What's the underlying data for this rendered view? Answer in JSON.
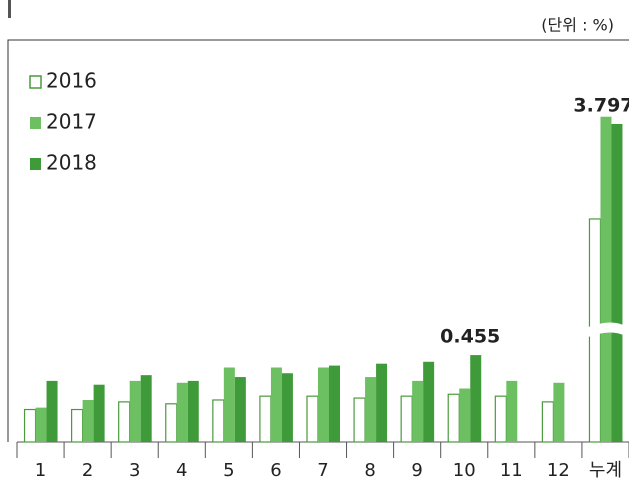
{
  "chart_data": {
    "type": "bar",
    "unit": "(단위 : %)",
    "categories": [
      "1",
      "2",
      "3",
      "4",
      "5",
      "6",
      "7",
      "8",
      "9",
      "10",
      "11",
      "12",
      "누계"
    ],
    "series": [
      {
        "name": "2016",
        "color": "#4a9a3c",
        "values": [
          0.17,
          0.17,
          0.21,
          0.2,
          0.22,
          0.24,
          0.24,
          0.23,
          0.24,
          0.25,
          0.24,
          0.21,
          2.45
        ]
      },
      {
        "name": "2017",
        "color": "#6cc062",
        "values": [
          0.18,
          0.22,
          0.32,
          0.31,
          0.39,
          0.39,
          0.39,
          0.34,
          0.32,
          0.28,
          0.32,
          0.31,
          3.9
        ]
      },
      {
        "name": "2018",
        "color": "#3f9a3a",
        "values": [
          0.32,
          0.3,
          0.35,
          0.32,
          0.34,
          0.36,
          0.4,
          0.41,
          0.42,
          0.455,
          null,
          null,
          3.797
        ]
      }
    ],
    "legend": "top-left"
  }
}
